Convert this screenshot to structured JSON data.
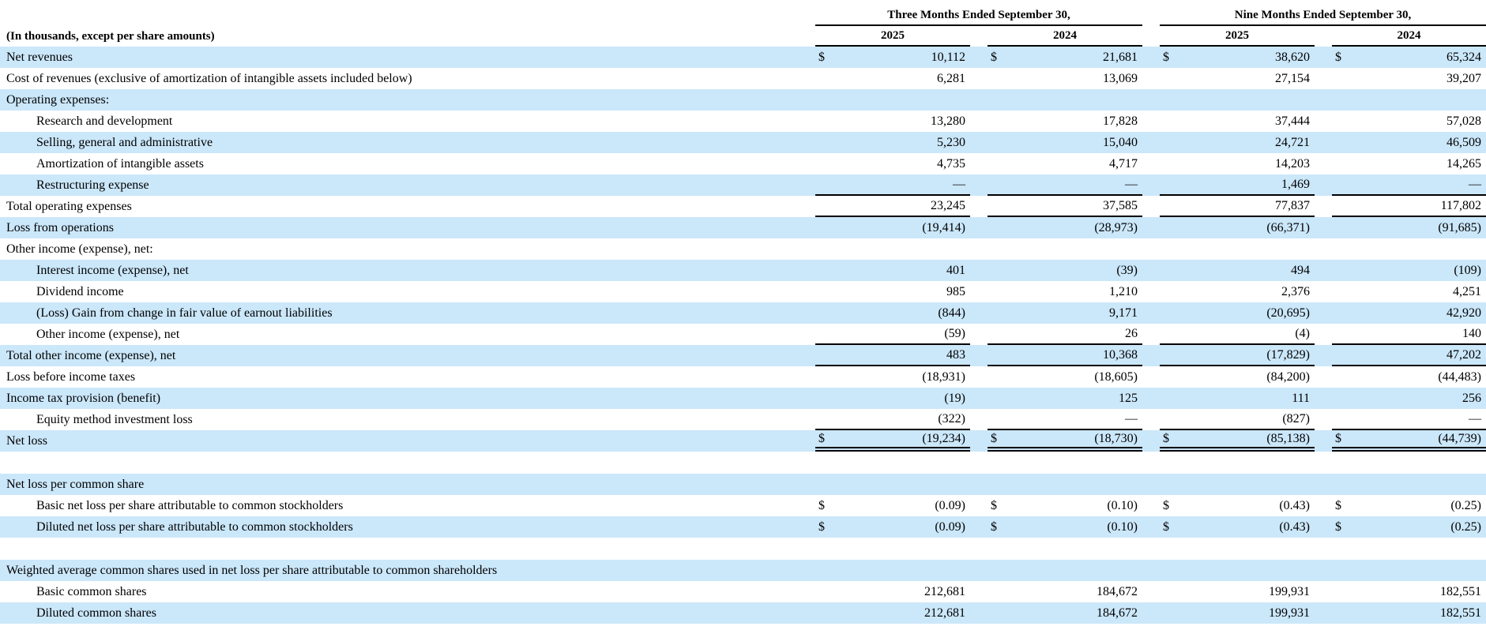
{
  "currency_symbol": "$",
  "accent_color": "#CBE7FA",
  "header": {
    "caption": "(In thousands, except per share amounts)",
    "period_groups": [
      "Three Months Ended September 30,",
      "Nine Months Ended September 30,"
    ],
    "years": [
      "2025",
      "2024",
      "2025",
      "2024"
    ]
  },
  "rows": [
    {
      "label": "Net revenues",
      "indent": 0,
      "dollar": true,
      "values": [
        "10,112",
        "21,681",
        "38,620",
        "65,324"
      ],
      "shade": true,
      "underline": "none"
    },
    {
      "label": "Cost of revenues (exclusive of amortization of intangible assets included below)",
      "indent": 0,
      "dollar": false,
      "values": [
        "6,281",
        "13,069",
        "27,154",
        "39,207"
      ],
      "shade": false,
      "underline": "none"
    },
    {
      "label": "Operating expenses:",
      "indent": 0,
      "dollar": false,
      "values": [],
      "shade": true,
      "underline": "none"
    },
    {
      "label": "Research and development",
      "indent": 1,
      "dollar": false,
      "values": [
        "13,280",
        "17,828",
        "37,444",
        "57,028"
      ],
      "shade": false,
      "underline": "none"
    },
    {
      "label": "Selling, general and administrative",
      "indent": 1,
      "dollar": false,
      "values": [
        "5,230",
        "15,040",
        "24,721",
        "46,509"
      ],
      "shade": true,
      "underline": "none"
    },
    {
      "label": "Amortization of intangible assets",
      "indent": 1,
      "dollar": false,
      "values": [
        "4,735",
        "4,717",
        "14,203",
        "14,265"
      ],
      "shade": false,
      "underline": "none"
    },
    {
      "label": "Restructuring expense",
      "indent": 1,
      "dollar": false,
      "values": [
        "—",
        "—",
        "1,469",
        "—"
      ],
      "shade": true,
      "underline": "single"
    },
    {
      "label": "Total operating expenses",
      "indent": 0,
      "dollar": false,
      "values": [
        "23,245",
        "37,585",
        "77,837",
        "117,802"
      ],
      "shade": false,
      "underline": "single"
    },
    {
      "label": "Loss from operations",
      "indent": 0,
      "dollar": false,
      "values": [
        "(19,414)",
        "(28,973)",
        "(66,371)",
        "(91,685)"
      ],
      "shade": true,
      "underline": "none"
    },
    {
      "label": "Other income (expense), net:",
      "indent": 0,
      "dollar": false,
      "values": [],
      "shade": false,
      "underline": "none"
    },
    {
      "label": "Interest income (expense), net",
      "indent": 1,
      "dollar": false,
      "values": [
        "401",
        "(39)",
        "494",
        "(109)"
      ],
      "shade": true,
      "underline": "none"
    },
    {
      "label": "Dividend income",
      "indent": 1,
      "dollar": false,
      "values": [
        "985",
        "1,210",
        "2,376",
        "4,251"
      ],
      "shade": false,
      "underline": "none"
    },
    {
      "label": "(Loss) Gain from change in fair value of earnout liabilities",
      "indent": 1,
      "dollar": false,
      "values": [
        "(844)",
        "9,171",
        "(20,695)",
        "42,920"
      ],
      "shade": true,
      "underline": "none"
    },
    {
      "label": "Other income (expense), net",
      "indent": 1,
      "dollar": false,
      "values": [
        "(59)",
        "26",
        "(4)",
        "140"
      ],
      "shade": false,
      "underline": "single"
    },
    {
      "label": "Total other income (expense), net",
      "indent": 0,
      "dollar": false,
      "values": [
        "483",
        "10,368",
        "(17,829)",
        "47,202"
      ],
      "shade": true,
      "underline": "single"
    },
    {
      "label": "Loss before income taxes",
      "indent": 0,
      "dollar": false,
      "values": [
        "(18,931)",
        "(18,605)",
        "(84,200)",
        "(44,483)"
      ],
      "shade": false,
      "underline": "none"
    },
    {
      "label": "Income tax provision (benefit)",
      "indent": 0,
      "dollar": false,
      "values": [
        "(19)",
        "125",
        "111",
        "256"
      ],
      "shade": true,
      "underline": "none"
    },
    {
      "label": "Equity method investment loss",
      "indent": 1,
      "dollar": false,
      "values": [
        "(322)",
        "—",
        "(827)",
        "—"
      ],
      "shade": false,
      "underline": "single"
    },
    {
      "label": "Net loss",
      "indent": 0,
      "dollar": true,
      "values": [
        "(19,234)",
        "(18,730)",
        "(85,138)",
        "(44,739)"
      ],
      "shade": true,
      "underline": "double"
    },
    {
      "spacer": true
    },
    {
      "label": "Net loss per common share",
      "indent": 0,
      "dollar": false,
      "values": [],
      "shade": true,
      "underline": "none"
    },
    {
      "label": "Basic net loss per share attributable to common stockholders",
      "indent": 1,
      "dollar": true,
      "values": [
        "(0.09)",
        "(0.10)",
        "(0.43)",
        "(0.25)"
      ],
      "shade": false,
      "underline": "none"
    },
    {
      "label": "Diluted net loss per share attributable to common stockholders",
      "indent": 1,
      "dollar": true,
      "values": [
        "(0.09)",
        "(0.10)",
        "(0.43)",
        "(0.25)"
      ],
      "shade": true,
      "underline": "none"
    },
    {
      "spacer": true
    },
    {
      "label": "Weighted average common shares used in net loss per share attributable to common shareholders",
      "indent": 0,
      "dollar": false,
      "values": [],
      "shade": true,
      "underline": "none"
    },
    {
      "label": "Basic common shares",
      "indent": 1,
      "dollar": false,
      "values": [
        "212,681",
        "184,672",
        "199,931",
        "182,551"
      ],
      "shade": false,
      "underline": "none"
    },
    {
      "label": "Diluted common shares",
      "indent": 1,
      "dollar": false,
      "values": [
        "212,681",
        "184,672",
        "199,931",
        "182,551"
      ],
      "shade": true,
      "underline": "none"
    }
  ]
}
